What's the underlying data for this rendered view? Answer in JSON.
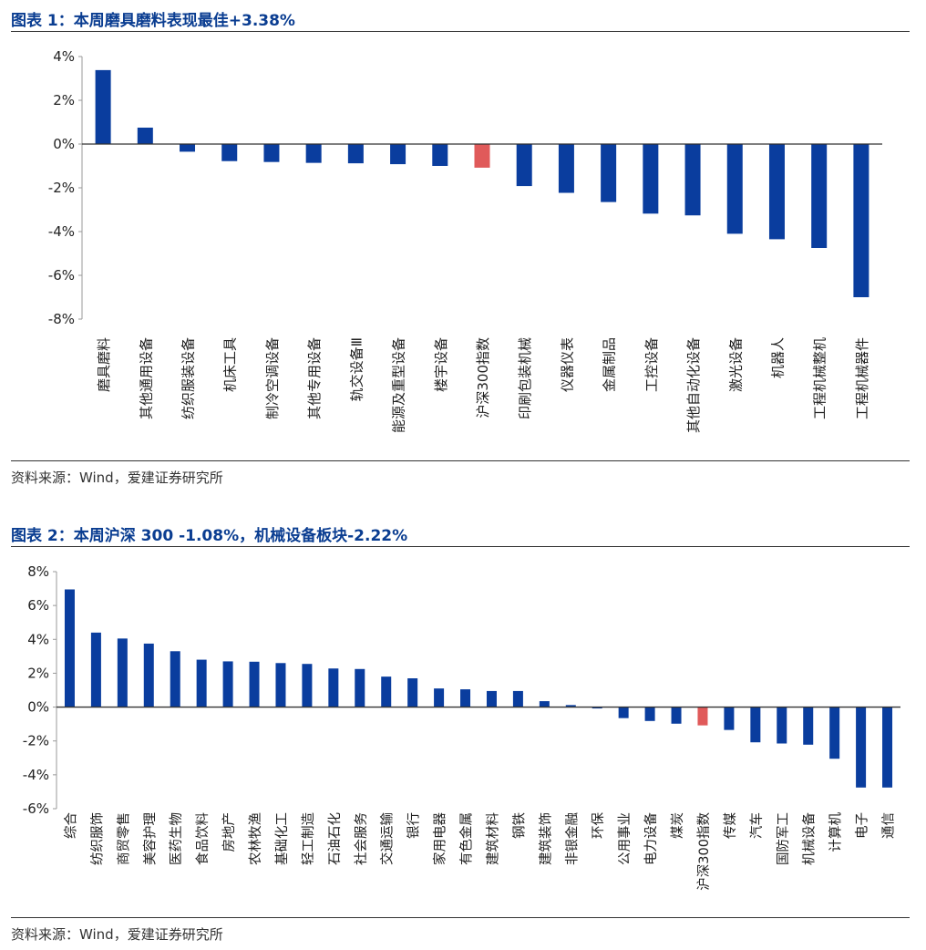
{
  "colors": {
    "bar": "#0a3d9e",
    "highlight": "#e05a5a",
    "title": "#0a3d91"
  },
  "figure1": {
    "title": "图表 1：本周磨具磨料表现最佳+3.38%",
    "source": "资料来源：Wind，爱建证券研究所"
  },
  "figure2": {
    "title": "图表 2：本周沪深 300 -1.08%，机械设备板块-2.22%",
    "source": "资料来源：Wind，爱建证券研究所"
  },
  "chart_data": [
    {
      "type": "bar",
      "title": "本周磨具磨料表现最佳+3.38%",
      "ylim": [
        -8,
        4
      ],
      "yticks": [
        4,
        2,
        0,
        -2,
        -4,
        -6,
        -8
      ],
      "ytick_labels": [
        "4%",
        "2%",
        "0%",
        "-2%",
        "-4%",
        "-6%",
        "-8%"
      ],
      "highlight": "沪深300指数",
      "categories": [
        "磨具磨料",
        "其他通用设备",
        "纺织服装设备",
        "机床工具",
        "制冷空调设备",
        "其他专用设备",
        "轨交设备Ⅲ",
        "能源及重型设备",
        "楼宇设备",
        "沪深300指数",
        "印刷包装机械",
        "仪器仪表",
        "金属制品",
        "工控设备",
        "其他自动化设备",
        "激光设备",
        "机器人",
        "工程机械整机",
        "工程机械器件"
      ],
      "values": [
        3.38,
        0.75,
        -0.35,
        -0.78,
        -0.82,
        -0.86,
        -0.88,
        -0.92,
        -1.0,
        -1.08,
        -1.92,
        -2.23,
        -2.65,
        -3.18,
        -3.26,
        -4.1,
        -4.35,
        -4.75,
        -7.0
      ]
    },
    {
      "type": "bar",
      "title": "本周沪深 300 -1.08%，机械设备板块-2.22%",
      "ylim": [
        -6,
        8
      ],
      "yticks": [
        8,
        6,
        4,
        2,
        0,
        -2,
        -4,
        -6
      ],
      "ytick_labels": [
        "8%",
        "6%",
        "4%",
        "2%",
        "0%",
        "-2%",
        "-4%",
        "-6%"
      ],
      "highlight": "沪深300指数",
      "categories": [
        "综合",
        "纺织服饰",
        "商贸零售",
        "美容护理",
        "医药生物",
        "食品饮料",
        "房地产",
        "农林牧渔",
        "基础化工",
        "轻工制造",
        "石油石化",
        "社会服务",
        "交通运输",
        "银行",
        "家用电器",
        "有色金属",
        "建筑材料",
        "钢铁",
        "建筑装饰",
        "非银金融",
        "环保",
        "公用事业",
        "电力设备",
        "煤炭",
        "沪深300指数",
        "传媒",
        "汽车",
        "国防军工",
        "机械设备",
        "计算机",
        "电子",
        "通信"
      ],
      "values": [
        6.95,
        4.4,
        4.05,
        3.75,
        3.3,
        2.8,
        2.7,
        2.68,
        2.6,
        2.55,
        2.28,
        2.25,
        1.8,
        1.7,
        1.1,
        1.05,
        0.95,
        0.95,
        0.35,
        0.12,
        -0.08,
        -0.65,
        -0.82,
        -0.98,
        -1.08,
        -1.35,
        -2.08,
        -2.15,
        -2.22,
        -3.05,
        -4.75,
        -4.75
      ]
    }
  ]
}
